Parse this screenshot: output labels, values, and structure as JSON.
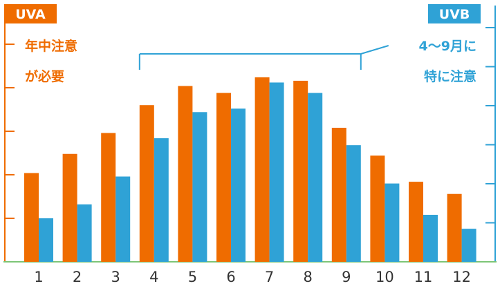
{
  "chart_data": {
    "type": "bar",
    "categories": [
      "1",
      "2",
      "3",
      "4",
      "5",
      "6",
      "7",
      "8",
      "9",
      "10",
      "11",
      "12"
    ],
    "series": [
      {
        "name": "UVA",
        "color": "#ef6c00",
        "values": [
          51,
          62,
          74,
          90,
          101,
          97,
          106,
          104,
          77,
          61,
          46,
          39
        ]
      },
      {
        "name": "UVB",
        "color": "#2fa2d6",
        "values": [
          25,
          33,
          49,
          71,
          86,
          88,
          103,
          97,
          67,
          45,
          27,
          19
        ]
      }
    ],
    "ylim": [
      0,
      120
    ],
    "grid": false,
    "left_axis_color": "#ef6c00",
    "right_axis_color": "#2fa2d6",
    "baseline_color": "#7cc576",
    "annotations": {
      "uva_note_line1": "年中注意",
      "uva_note_line2": "が必要",
      "uvb_note_line1": "4〜9月に",
      "uvb_note_line2": "特に注意",
      "uvb_range": [
        "4",
        "9"
      ]
    }
  }
}
